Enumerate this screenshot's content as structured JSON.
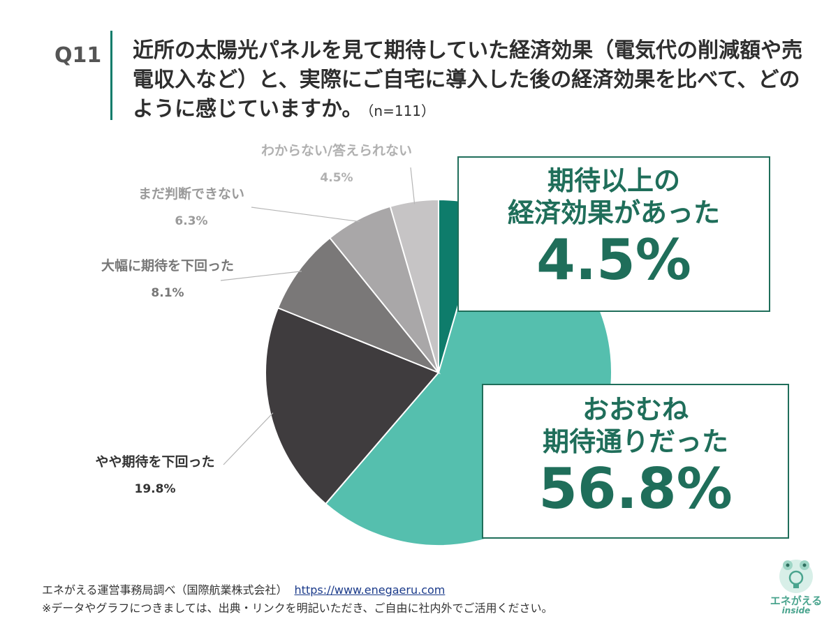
{
  "question": {
    "label": "Q11",
    "text": "近所の太陽光パネルを見て期待していた経済効果（電気代の削減額や売電収入など）と、実際にご自宅に導入した後の経済効果を比べて、どのように感じていますか。",
    "n": "（n=111）"
  },
  "chart_data": {
    "type": "pie",
    "categories": [
      "期待以上の経済効果があった",
      "おおむね期待通りだった",
      "やや期待を下回った",
      "大幅に期待を下回った",
      "まだ判断できない",
      "わからない/答えられない"
    ],
    "values": [
      4.5,
      56.8,
      19.8,
      8.1,
      6.3,
      4.5
    ],
    "colors": [
      "#0e7c6b",
      "#55bfae",
      "#3f3c3e",
      "#7a7878",
      "#a9a7a8",
      "#c6c4c5"
    ],
    "start": "12 o'clock, clockwise",
    "labels": [
      {
        "name": "やや期待を下回った",
        "value": "19.8%",
        "color": "#333333"
      },
      {
        "name": "大幅に期待を下回った",
        "value": "8.1%",
        "color": "#777777"
      },
      {
        "name": "まだ判断できない",
        "value": "6.3%",
        "color": "#9a9a9a"
      },
      {
        "name": "わからない/答えられない",
        "value": "4.5%",
        "color": "#b0b0b0"
      }
    ]
  },
  "callouts": {
    "a": {
      "title_1": "期待以上の",
      "title_2": "経済効果があった",
      "pct": "4.5%"
    },
    "b": {
      "title_1": "おおむね",
      "title_2": "期待通りだった",
      "pct": "56.8%"
    }
  },
  "footer": {
    "source": "エネがえる運営事務局調べ（国際航業株式会社）",
    "url": "https://www.enegaeru.com",
    "note": "※データやグラフにつきましては、出典・リンクを明記いただき、ご自由に社内外でご活用ください。"
  },
  "logo": {
    "name_1": "エネがえる",
    "name_2": "inside",
    "icon": "frog-lightbulb-icon"
  }
}
